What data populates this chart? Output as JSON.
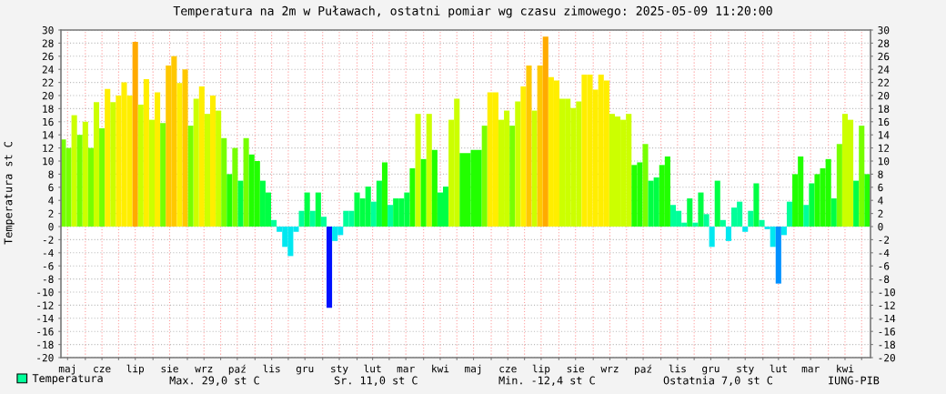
{
  "chart_data": {
    "type": "bar",
    "title": "Temperatura na 2m w Puławach, ostatni pomiar wg czasu zimowego: 2025-05-09 11:20:00",
    "ylabel": "Temperatura st C",
    "x": [
      "2023-05-12",
      "2023-05-17",
      "2023-05-22",
      "2023-05-27",
      "2023-06-01",
      "2023-06-06",
      "2023-06-11",
      "2023-06-16",
      "2023-06-21",
      "2023-06-26",
      "2023-07-01",
      "2023-07-06",
      "2023-07-11",
      "2023-07-16",
      "2023-07-21",
      "2023-07-26",
      "2023-07-31",
      "2023-08-05",
      "2023-08-10",
      "2023-08-15",
      "2023-08-20",
      "2023-08-25",
      "2023-08-30",
      "2023-09-04",
      "2023-09-09",
      "2023-09-14",
      "2023-09-19",
      "2023-09-24",
      "2023-09-29",
      "2023-10-04",
      "2023-10-09",
      "2023-10-14",
      "2023-10-19",
      "2023-10-24",
      "2023-10-29",
      "2023-11-03",
      "2023-11-08",
      "2023-11-13",
      "2023-11-18",
      "2023-11-23",
      "2023-11-28",
      "2023-12-03",
      "2023-12-08",
      "2023-12-13",
      "2023-12-18",
      "2023-12-23",
      "2023-12-28",
      "2024-01-02",
      "2024-01-07",
      "2024-01-12",
      "2024-01-17",
      "2024-01-22",
      "2024-01-27",
      "2024-02-01",
      "2024-02-06",
      "2024-02-11",
      "2024-02-16",
      "2024-02-21",
      "2024-02-26",
      "2024-03-02",
      "2024-03-07",
      "2024-03-12",
      "2024-03-17",
      "2024-03-22",
      "2024-03-27",
      "2024-04-01",
      "2024-04-06",
      "2024-04-11",
      "2024-04-16",
      "2024-04-21",
      "2024-04-26",
      "2024-05-01",
      "2024-05-06",
      "2024-05-21",
      "2024-05-26",
      "2024-05-31",
      "2024-06-05",
      "2024-06-10",
      "2024-06-15",
      "2024-06-20",
      "2024-06-25",
      "2024-06-30",
      "2024-07-05",
      "2024-07-10",
      "2024-07-15",
      "2024-07-20",
      "2024-07-25",
      "2024-07-30",
      "2024-08-04",
      "2024-08-09",
      "2024-08-14",
      "2024-08-19",
      "2024-08-24",
      "2024-08-29",
      "2024-09-03",
      "2024-09-08",
      "2024-09-13",
      "2024-09-18",
      "2024-09-23",
      "2024-09-28",
      "2024-10-03",
      "2024-10-08",
      "2024-10-13",
      "2024-10-18",
      "2024-10-23",
      "2024-10-28",
      "2024-11-02",
      "2024-11-07",
      "2024-11-12",
      "2024-11-17",
      "2024-11-22",
      "2024-11-27",
      "2024-12-02",
      "2024-12-07",
      "2024-12-12",
      "2024-12-17",
      "2024-12-22",
      "2024-12-27",
      "2025-01-01",
      "2025-01-06",
      "2025-01-11",
      "2025-01-16",
      "2025-01-21",
      "2025-01-26",
      "2025-01-31",
      "2025-02-05",
      "2025-02-10",
      "2025-02-15",
      "2025-02-20",
      "2025-02-25",
      "2025-03-02",
      "2025-03-07",
      "2025-03-12",
      "2025-03-17",
      "2025-03-22",
      "2025-03-27",
      "2025-04-01",
      "2025-04-06",
      "2025-04-11",
      "2025-04-16",
      "2025-04-21",
      "2025-04-26",
      "2025-05-01",
      "2025-05-06"
    ],
    "series": [
      {
        "name": "Temperatura",
        "color": "#00ff99",
        "values": [
          13.3,
          12,
          17,
          14,
          16,
          12,
          19,
          15,
          21,
          19,
          20,
          22,
          20,
          28.2,
          18.6,
          22.5,
          16.3,
          20.5,
          15.8,
          24.6,
          26,
          21.9,
          24,
          15.4,
          19.5,
          21.4,
          17.2,
          20,
          17.7,
          13.5,
          8,
          12,
          7,
          13.5,
          11,
          10,
          7,
          5.2,
          1,
          -0.8,
          -3.1,
          -4.5,
          -0.8,
          2.4,
          5.2,
          2.4,
          5.2,
          1.5,
          -12.4,
          -2.2,
          -1.3,
          2.4,
          2.4,
          5.2,
          4.3,
          6.1,
          3.8,
          7,
          9.8,
          3.3,
          4.3,
          4.3,
          5.2,
          8.9,
          17.2,
          10.3,
          17.2,
          11.7,
          5.2,
          6.1,
          16.3,
          19.5,
          11.2,
          11.7,
          15.4,
          20.5,
          20.5,
          16.3,
          17.7,
          15.4,
          19.1,
          21.4,
          24.6,
          17.7,
          24.6,
          29,
          22.8,
          22.3,
          19.5,
          19.5,
          18.1,
          19.1,
          23.2,
          23.2,
          20.9,
          23.2,
          22.3,
          17.2,
          16.8,
          16.3,
          17.2,
          9.4,
          9.8,
          12.6,
          7,
          7.5,
          9.4,
          10.7,
          3.3,
          2.4,
          0.6,
          4.3,
          0.6,
          5.2,
          1.9,
          -3.1,
          7,
          1,
          -2.2,
          2.9,
          3.8,
          -0.8,
          2.4,
          6.6,
          1,
          -0.4,
          -3.1,
          -8.7,
          -1.3,
          3.8,
          8,
          10.7,
          3.3,
          6.6,
          8,
          8.9,
          10.3,
          4.3,
          12.6,
          17.2,
          16.3,
          7,
          15.4,
          8
        ],
        "colors": [
          "#77ff00",
          "#77ff00",
          "#ccff00",
          "#77ff00",
          "#ccff00",
          "#77ff00",
          "#ccff00",
          "#77ff00",
          "#ffee00",
          "#ccff00",
          "#ffee00",
          "#ffee00",
          "#ffee00",
          "#ffaa00",
          "#ccff00",
          "#ffee00",
          "#ccff00",
          "#ffee00",
          "#77ff00",
          "#ffc800",
          "#ffc800",
          "#ffee00",
          "#ffc800",
          "#77ff00",
          "#ccff00",
          "#ffee00",
          "#ccff00",
          "#ffee00",
          "#ccff00",
          "#77ff00",
          "#22ff00",
          "#77ff00",
          "#00ff44",
          "#77ff00",
          "#22ff00",
          "#22ff00",
          "#00ff44",
          "#00ff44",
          "#00ff99",
          "#00e8f0",
          "#00e8f0",
          "#00e8f0",
          "#00e8f0",
          "#00ff99",
          "#00ff44",
          "#00ff99",
          "#00ff44",
          "#00ff99",
          "#0010ff",
          "#00e8f0",
          "#00e8f0",
          "#00ff99",
          "#00ff99",
          "#00ff44",
          "#00ff44",
          "#00ff44",
          "#00ff99",
          "#00ff44",
          "#22ff00",
          "#00ff99",
          "#00ff44",
          "#00ff44",
          "#00ff44",
          "#22ff00",
          "#ccff00",
          "#22ff00",
          "#ccff00",
          "#22ff00",
          "#00ff44",
          "#00ff44",
          "#ccff00",
          "#ccff00",
          "#22ff00",
          "#22ff00",
          "#77ff00",
          "#ffee00",
          "#ffee00",
          "#ccff00",
          "#ccff00",
          "#77ff00",
          "#ccff00",
          "#ffee00",
          "#ffc800",
          "#ccff00",
          "#ffc800",
          "#ffaa00",
          "#ffee00",
          "#ffee00",
          "#ccff00",
          "#ccff00",
          "#ccff00",
          "#ccff00",
          "#ffee00",
          "#ffee00",
          "#ffee00",
          "#ffee00",
          "#ffee00",
          "#ccff00",
          "#ccff00",
          "#ccff00",
          "#ccff00",
          "#22ff00",
          "#22ff00",
          "#77ff00",
          "#00ff44",
          "#00ff44",
          "#22ff00",
          "#22ff00",
          "#00ff99",
          "#00ff99",
          "#00ff99",
          "#00ff44",
          "#00ff99",
          "#00ff44",
          "#00ff99",
          "#00e8f0",
          "#00ff44",
          "#00ff99",
          "#00e8f0",
          "#00ff99",
          "#00ff99",
          "#00e8f0",
          "#00ff99",
          "#00ff44",
          "#00ff99",
          "#00e8f0",
          "#00e8f0",
          "#0090ff",
          "#00e8f0",
          "#00ff99",
          "#22ff00",
          "#22ff00",
          "#00ff99",
          "#00ff44",
          "#22ff00",
          "#22ff00",
          "#22ff00",
          "#00ff44",
          "#77ff00",
          "#ccff00",
          "#ccff00",
          "#00ff44",
          "#77ff00",
          "#22ff00"
        ]
      }
    ],
    "xlim": [
      "2023-05-10",
      "2025-05-09"
    ],
    "xticks": [
      {
        "value": "2023-05-16",
        "label": "maj"
      },
      {
        "value": "2023-06-01",
        "label": null
      },
      {
        "value": "2023-06-16",
        "label": "cze"
      },
      {
        "value": "2023-07-01",
        "label": null
      },
      {
        "value": "2023-07-16",
        "label": "lip"
      },
      {
        "value": "2023-08-01",
        "label": null
      },
      {
        "value": "2023-08-16",
        "label": "sie"
      },
      {
        "value": "2023-09-01",
        "label": null
      },
      {
        "value": "2023-09-16",
        "label": "wrz"
      },
      {
        "value": "2023-10-01",
        "label": null
      },
      {
        "value": "2023-10-16",
        "label": "paź"
      },
      {
        "value": "2023-11-01",
        "label": null
      },
      {
        "value": "2023-11-16",
        "label": "lis"
      },
      {
        "value": "2023-12-01",
        "label": null
      },
      {
        "value": "2023-12-16",
        "label": "gru"
      },
      {
        "value": "2024-01-01",
        "label": null
      },
      {
        "value": "2024-01-16",
        "label": "sty"
      },
      {
        "value": "2024-02-01",
        "label": null
      },
      {
        "value": "2024-02-15",
        "label": "lut"
      },
      {
        "value": "2024-03-01",
        "label": null
      },
      {
        "value": "2024-03-16",
        "label": "mar"
      },
      {
        "value": "2024-04-01",
        "label": null
      },
      {
        "value": "2024-04-16",
        "label": "kwi"
      },
      {
        "value": "2024-05-01",
        "label": null
      },
      {
        "value": "2024-05-16",
        "label": "maj"
      },
      {
        "value": "2024-06-01",
        "label": null
      },
      {
        "value": "2024-06-16",
        "label": "cze"
      },
      {
        "value": "2024-07-01",
        "label": null
      },
      {
        "value": "2024-07-16",
        "label": "lip"
      },
      {
        "value": "2024-08-01",
        "label": null
      },
      {
        "value": "2024-08-16",
        "label": "sie"
      },
      {
        "value": "2024-09-01",
        "label": null
      },
      {
        "value": "2024-09-16",
        "label": "wrz"
      },
      {
        "value": "2024-10-01",
        "label": null
      },
      {
        "value": "2024-10-16",
        "label": "paź"
      },
      {
        "value": "2024-11-01",
        "label": null
      },
      {
        "value": "2024-11-16",
        "label": "lis"
      },
      {
        "value": "2024-12-01",
        "label": null
      },
      {
        "value": "2024-12-16",
        "label": "gru"
      },
      {
        "value": "2025-01-01",
        "label": null
      },
      {
        "value": "2025-01-16",
        "label": "sty"
      },
      {
        "value": "2025-02-01",
        "label": null
      },
      {
        "value": "2025-02-15",
        "label": "lut"
      },
      {
        "value": "2025-03-01",
        "label": null
      },
      {
        "value": "2025-03-16",
        "label": "mar"
      },
      {
        "value": "2025-04-01",
        "label": null
      },
      {
        "value": "2025-04-16",
        "label": "kwi"
      },
      {
        "value": "2025-05-01",
        "label": null
      }
    ],
    "ylim": [
      -20,
      30
    ],
    "yticks": [
      -20,
      -18,
      -16,
      -14,
      -12,
      -10,
      -8,
      -6,
      -4,
      -2,
      0,
      2,
      4,
      6,
      8,
      10,
      12,
      14,
      16,
      18,
      20,
      22,
      24,
      26,
      28,
      30
    ],
    "y2lim": [
      -20,
      30
    ],
    "y2ticks": [
      -20,
      -18,
      -16,
      -14,
      -12,
      -10,
      -8,
      -6,
      -4,
      -2,
      0,
      2,
      4,
      6,
      8,
      10,
      12,
      14,
      16,
      18,
      20,
      22,
      24,
      26,
      28,
      30
    ],
    "grid": true,
    "legend": "bottom left",
    "annotations": [
      "Max. 29,0 st C",
      "Sr. 11,0 st C",
      "Min. -12,4 st C",
      "Ostatnia 7,0 st C",
      "IUNG-PIB"
    ]
  }
}
